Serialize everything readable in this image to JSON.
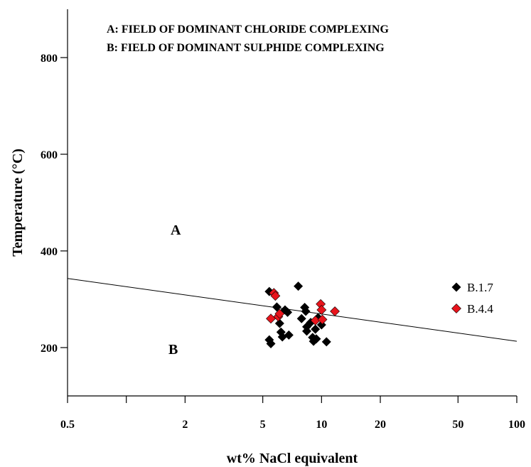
{
  "chart_data": {
    "type": "scatter",
    "title": "",
    "xlabel": "wt% NaCl equivalent",
    "ylabel": "Temperature (°C)",
    "xscale": "log",
    "xlim": [
      0.5,
      100
    ],
    "ylim": [
      100,
      900
    ],
    "x_tick_labels": [
      "0.5",
      "2",
      "5",
      "10",
      "20",
      "50",
      "100"
    ],
    "x_tick_values": [
      0.5,
      2,
      5,
      10,
      20,
      50,
      100
    ],
    "x_minor_ticks": [
      1
    ],
    "y_tick_labels": [
      "200",
      "400",
      "600",
      "800"
    ],
    "y_tick_values": [
      200,
      400,
      600,
      800
    ],
    "grid": false,
    "legend_position": "right",
    "annotations": {
      "line_a": "A: FIELD OF DOMINANT CHLORIDE COMPLEXING",
      "line_b": "B: FIELD OF DOMINANT SULPHIDE COMPLEXING",
      "region_a": "A",
      "region_b": "B"
    },
    "boundary_line": {
      "x": [
        0.5,
        100
      ],
      "y": [
        343,
        213
      ]
    },
    "series": [
      {
        "name": "B.1.7",
        "color": "#000000",
        "marker": "diamond",
        "points": [
          [
            5.4,
            316
          ],
          [
            5.4,
            216
          ],
          [
            5.5,
            208
          ],
          [
            5.9,
            284
          ],
          [
            6.1,
            250
          ],
          [
            6.2,
            232
          ],
          [
            6.3,
            222
          ],
          [
            6.5,
            278
          ],
          [
            6.7,
            273
          ],
          [
            6.8,
            226
          ],
          [
            7.6,
            327
          ],
          [
            7.9,
            260
          ],
          [
            8.2,
            283
          ],
          [
            8.3,
            275
          ],
          [
            8.4,
            243
          ],
          [
            8.4,
            234
          ],
          [
            8.8,
            252
          ],
          [
            9.0,
            221
          ],
          [
            9.1,
            213
          ],
          [
            9.3,
            238
          ],
          [
            9.4,
            218
          ],
          [
            9.6,
            262
          ],
          [
            10.0,
            247
          ],
          [
            10.6,
            212
          ]
        ]
      },
      {
        "name": "B.4.4",
        "color": "#e8141c",
        "marker": "diamond",
        "points": [
          [
            5.5,
            260
          ],
          [
            5.7,
            313
          ],
          [
            5.8,
            307
          ],
          [
            6.0,
            264
          ],
          [
            6.1,
            270
          ],
          [
            9.3,
            256
          ],
          [
            9.9,
            290
          ],
          [
            10.0,
            278
          ],
          [
            10.1,
            258
          ],
          [
            11.7,
            275
          ]
        ]
      }
    ]
  }
}
